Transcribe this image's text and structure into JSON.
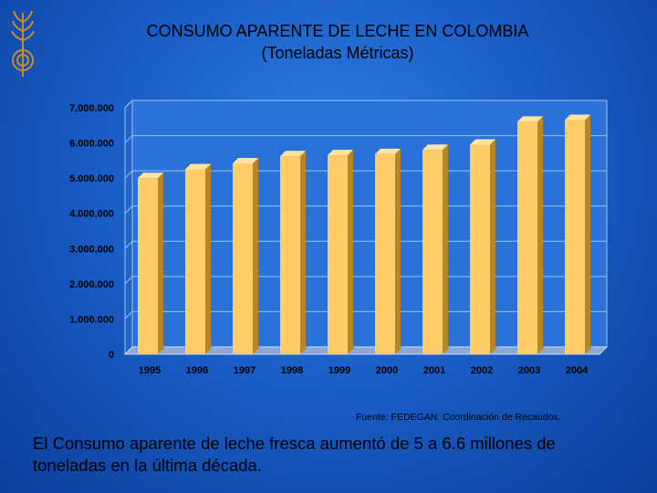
{
  "slide": {
    "title_line1": "CONSUMO APARENTE DE LECHE EN COLOMBIA",
    "title_line2": "(Toneladas Métricas)",
    "source": "Fuente: FEDEGAN. Coordinación de Recaudos.",
    "caption": "El Consumo aparente de leche fresca aumentó de 5 a 6.6 millones de toneladas en la última década."
  },
  "colors": {
    "bar_front": "#ffcc66",
    "bar_side": "#b8862a",
    "bar_top": "#ffe3a0",
    "plot_bg": "#2a72d8",
    "grid": "#9bc1f2",
    "floor": "#8aa9d6"
  },
  "chart_data": {
    "type": "bar",
    "categories": [
      "1995",
      "1996",
      "1997",
      "1998",
      "1999",
      "2000",
      "2001",
      "2002",
      "2003",
      "2004"
    ],
    "values": [
      5000000,
      5250000,
      5420000,
      5620000,
      5650000,
      5680000,
      5800000,
      5950000,
      6600000,
      6650000
    ],
    "yticks": [
      "0",
      "1.000.000",
      "2.000.000",
      "3.000.000",
      "4.000.000",
      "5.000.000",
      "6.000.000",
      "7.000.000"
    ],
    "ylim": [
      0,
      7000000
    ],
    "grid": true,
    "legend": false,
    "title": "",
    "xlabel": "",
    "ylabel": ""
  }
}
